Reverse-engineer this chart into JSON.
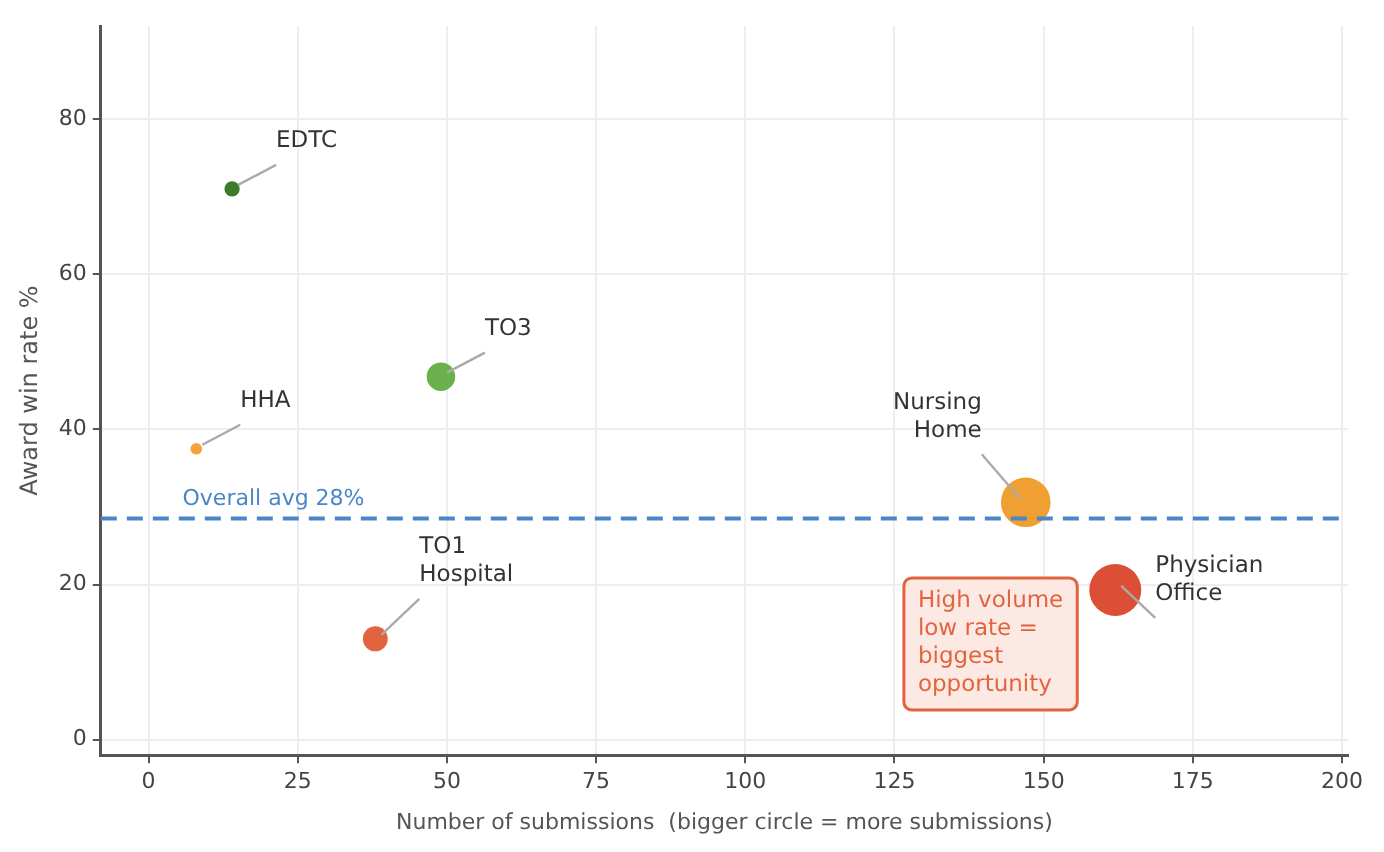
{
  "chart_data": {
    "type": "bubble",
    "xlabel": "Number of submissions  (bigger circle = more submissions)",
    "ylabel": "Award win rate %",
    "xlim": [
      -8,
      201
    ],
    "ylim": [
      -2,
      92
    ],
    "xticks": [
      0,
      25,
      50,
      75,
      100,
      125,
      150,
      175,
      200
    ],
    "yticks": [
      0,
      20,
      40,
      60,
      80
    ],
    "grid": true,
    "series": [
      {
        "name": "EDTC",
        "color": "#3d7a2a",
        "x": [
          14
        ],
        "values": [
          71
        ],
        "sizes": [
          0.086
        ]
      },
      {
        "name": "HHA",
        "color": "#f2a43a",
        "x": [
          8
        ],
        "values": [
          37.5
        ],
        "sizes": [
          0.05
        ]
      },
      {
        "name": "TO3",
        "color": "#6ab04c",
        "x": [
          49
        ],
        "values": [
          46.8
        ],
        "sizes": [
          0.3
        ]
      },
      {
        "name": "TO1 Hospital",
        "color": "#e2643e",
        "x": [
          38
        ],
        "values": [
          13
        ],
        "sizes": [
          0.23
        ]
      },
      {
        "name": "Nursing Home",
        "color": "#f0a032",
        "x": [
          147
        ],
        "values": [
          30.6
        ],
        "sizes": [
          0.91
        ]
      },
      {
        "name": "Physician Office",
        "color": "#dc4e36",
        "x": [
          162
        ],
        "values": [
          19.3
        ],
        "sizes": [
          1
        ]
      }
    ],
    "ref_lines": [
      {
        "axis": "y",
        "value": 28.5,
        "label": "Overall avg 28%",
        "color": "#4a86c8",
        "line_style": "dashed"
      }
    ],
    "annotations": [
      "High volume low rate = biggest opportunity"
    ]
  }
}
